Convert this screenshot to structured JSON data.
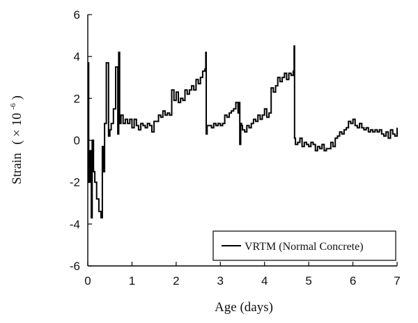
{
  "chart_data": {
    "type": "line",
    "title": "",
    "xlabel": "Age (days)",
    "ylabel_main": "Strain",
    "ylabel_unit": "( × 10",
    "ylabel_exponent": "-6",
    "ylabel_close": ")",
    "xlim": [
      0,
      7
    ],
    "ylim": [
      -6,
      6
    ],
    "x_ticks": [
      0,
      1,
      2,
      3,
      4,
      5,
      6,
      7
    ],
    "y_ticks": [
      -6,
      -4,
      -2,
      0,
      2,
      4,
      6
    ],
    "grid": false,
    "legend_position": "bottom-right",
    "series": [
      {
        "name": "VRTM (Normal Concrete)",
        "color": "#000000",
        "x": [
          0.0,
          0.02,
          0.05,
          0.08,
          0.1,
          0.13,
          0.16,
          0.2,
          0.25,
          0.3,
          0.33,
          0.35,
          0.38,
          0.42,
          0.47,
          0.5,
          0.53,
          0.58,
          0.63,
          0.68,
          0.7,
          0.72,
          0.75,
          0.8,
          0.85,
          0.9,
          0.95,
          1.0,
          1.05,
          1.1,
          1.15,
          1.2,
          1.25,
          1.3,
          1.35,
          1.4,
          1.45,
          1.5,
          1.55,
          1.6,
          1.65,
          1.7,
          1.75,
          1.8,
          1.85,
          1.9,
          1.95,
          2.0,
          2.05,
          2.1,
          2.15,
          2.2,
          2.25,
          2.3,
          2.35,
          2.4,
          2.45,
          2.5,
          2.55,
          2.6,
          2.65,
          2.67,
          2.68,
          2.7,
          2.75,
          2.8,
          2.85,
          2.9,
          2.95,
          3.0,
          3.05,
          3.1,
          3.15,
          3.2,
          3.25,
          3.3,
          3.35,
          3.4,
          3.42,
          3.44,
          3.46,
          3.48,
          3.5,
          3.55,
          3.6,
          3.65,
          3.7,
          3.75,
          3.8,
          3.85,
          3.9,
          3.95,
          4.0,
          4.05,
          4.1,
          4.15,
          4.2,
          4.25,
          4.3,
          4.35,
          4.4,
          4.45,
          4.5,
          4.55,
          4.6,
          4.65,
          4.67,
          4.68,
          4.7,
          4.75,
          4.8,
          4.85,
          4.9,
          4.95,
          5.0,
          5.05,
          5.1,
          5.15,
          5.2,
          5.25,
          5.3,
          5.35,
          5.4,
          5.45,
          5.5,
          5.55,
          5.6,
          5.65,
          5.7,
          5.75,
          5.8,
          5.85,
          5.9,
          5.95,
          6.0,
          6.05,
          6.1,
          6.15,
          6.2,
          6.25,
          6.3,
          6.35,
          6.4,
          6.45,
          6.5,
          6.55,
          6.6,
          6.65,
          6.7,
          6.75,
          6.8,
          6.85,
          6.9,
          6.95,
          7.0
        ],
        "y": [
          3.7,
          -2.0,
          -0.5,
          -3.7,
          0.0,
          -1.5,
          -2.0,
          -2.8,
          -3.4,
          -3.7,
          -0.3,
          -1.5,
          0.8,
          3.7,
          0.2,
          0.5,
          0.8,
          1.5,
          3.5,
          0.3,
          4.2,
          0.8,
          1.2,
          0.8,
          1.0,
          0.8,
          1.0,
          0.6,
          1.0,
          0.7,
          0.5,
          0.8,
          0.7,
          0.6,
          0.8,
          0.7,
          0.4,
          0.9,
          0.9,
          1.2,
          1.1,
          1.4,
          1.2,
          1.3,
          1.2,
          2.4,
          1.9,
          2.3,
          1.8,
          2.0,
          1.9,
          2.4,
          2.2,
          2.4,
          2.6,
          2.4,
          2.9,
          2.7,
          3.0,
          3.3,
          3.4,
          4.2,
          0.3,
          0.7,
          0.7,
          0.6,
          0.8,
          0.7,
          0.8,
          0.7,
          0.8,
          1.2,
          1.1,
          1.3,
          1.4,
          1.5,
          1.8,
          1.3,
          1.8,
          -0.2,
          0.8,
          0.7,
          0.5,
          0.4,
          0.7,
          0.6,
          0.8,
          1.0,
          0.9,
          1.2,
          1.0,
          1.2,
          1.5,
          1.1,
          1.3,
          2.5,
          2.3,
          2.6,
          3.0,
          2.8,
          3.0,
          3.2,
          2.9,
          3.2,
          3.1,
          3.3,
          4.5,
          0.1,
          -0.2,
          -0.1,
          0.1,
          -0.3,
          -0.1,
          -0.2,
          -0.3,
          -0.1,
          -0.2,
          -0.5,
          -0.3,
          -0.4,
          -0.2,
          -0.5,
          -0.4,
          -0.4,
          -0.1,
          -0.3,
          0.1,
          0.2,
          0.4,
          0.3,
          0.5,
          0.6,
          0.9,
          0.8,
          1.0,
          0.7,
          0.6,
          0.8,
          0.6,
          0.5,
          0.6,
          0.4,
          0.5,
          0.4,
          0.5,
          0.4,
          0.5,
          0.3,
          0.2,
          0.4,
          0.1,
          0.5,
          0.3,
          0.2,
          0.6
        ]
      }
    ]
  }
}
